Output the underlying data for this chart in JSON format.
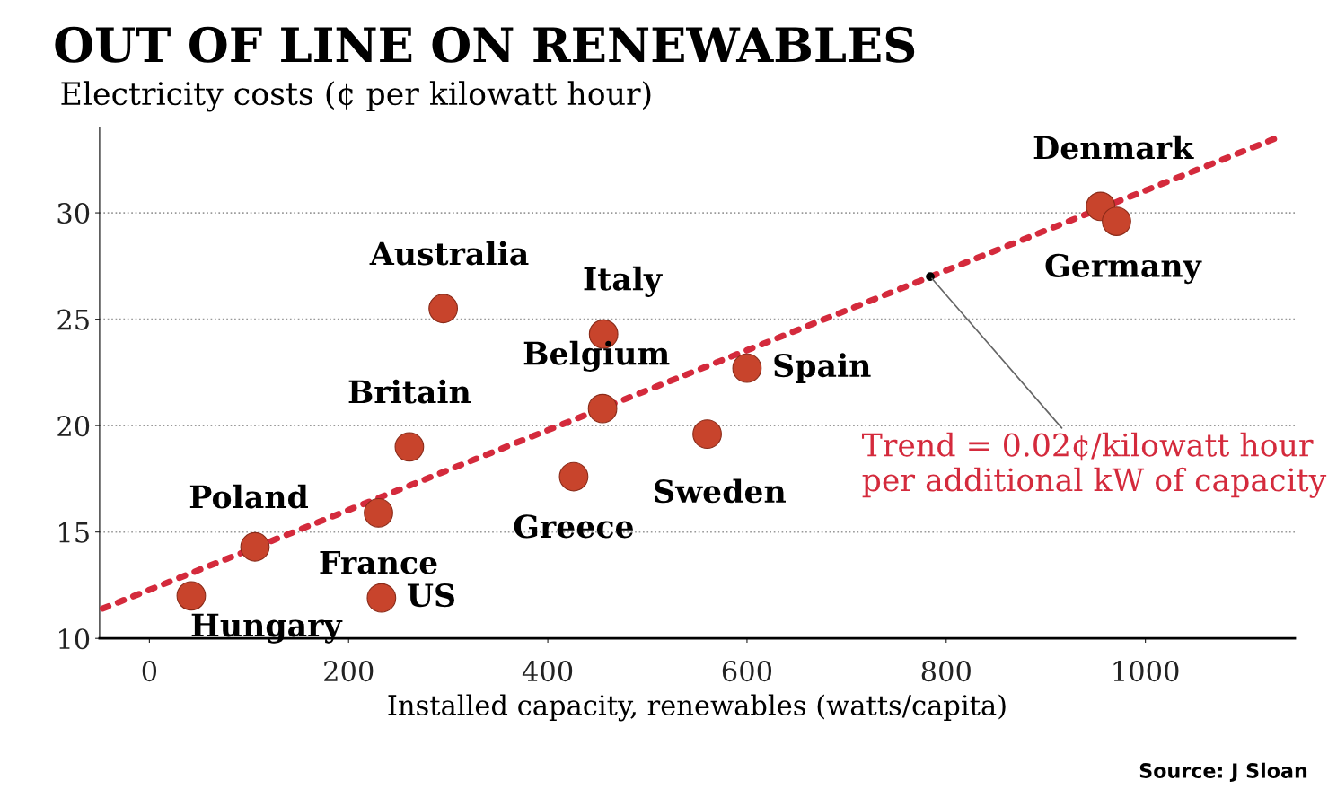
{
  "chart_data": {
    "type": "scatter",
    "title": "OUT OF LINE ON RENEWABLES",
    "subtitle": "Electricity costs (¢ per kilowatt hour)",
    "xlabel": "Installed capacity, renewables (watts/capita)",
    "series": [
      {
        "color": "#c8442c",
        "marker": "circle",
        "x": [
          42,
          106,
          230,
          233,
          261,
          295,
          426,
          455,
          456,
          560,
          600,
          955,
          971
        ],
        "values": [
          12.0,
          14.3,
          15.9,
          11.9,
          19.0,
          25.5,
          17.6,
          20.8,
          24.3,
          19.6,
          22.7,
          30.3,
          29.6
        ]
      },
      {
        "type": "line",
        "color": "#d42a3c",
        "line_style": "dotted",
        "x": [
          -47,
          1136
        ],
        "values": [
          11.4,
          33.6
        ]
      }
    ],
    "xlim": [
      -50,
      1150
    ],
    "ylim": [
      10,
      34
    ],
    "xticks": [
      0,
      200,
      400,
      600,
      800,
      1000
    ],
    "yticks": [
      10,
      15,
      20,
      25,
      30
    ],
    "grid": "y",
    "annotations": [
      {
        "text": "Hungary",
        "x": 42,
        "y": 12.0
      },
      {
        "text": "Poland",
        "x": 106,
        "y": 14.3
      },
      {
        "text": "France",
        "x": 230,
        "y": 15.9
      },
      {
        "text": "US",
        "x": 233,
        "y": 11.9
      },
      {
        "text": "Britain",
        "x": 261,
        "y": 19.0
      },
      {
        "text": "Australia",
        "x": 295,
        "y": 25.5
      },
      {
        "text": "Greece",
        "x": 426,
        "y": 17.6
      },
      {
        "text": "Belgium",
        "x": 455,
        "y": 20.8
      },
      {
        "text": "Italy",
        "x": 456,
        "y": 24.3
      },
      {
        "text": "Sweden",
        "x": 560,
        "y": 19.6
      },
      {
        "text": "Spain",
        "x": 600,
        "y": 22.7
      },
      {
        "text": "Denmark",
        "x": 955,
        "y": 30.3
      },
      {
        "text": "Germany",
        "x": 971,
        "y": 29.6
      },
      {
        "text": "Trend = 0.02¢/kilowatt hour per additional kW of capacity",
        "x": 784,
        "y": 27.0
      },
      "Source: J Sloan"
    ]
  }
}
